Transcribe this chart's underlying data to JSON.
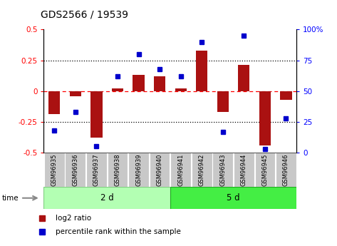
{
  "title": "GDS2566 / 19539",
  "samples": [
    "GSM96935",
    "GSM96936",
    "GSM96937",
    "GSM96938",
    "GSM96939",
    "GSM96940",
    "GSM96941",
    "GSM96942",
    "GSM96943",
    "GSM96944",
    "GSM96945",
    "GSM96946"
  ],
  "log2_ratio": [
    -0.19,
    -0.04,
    -0.38,
    0.02,
    0.13,
    0.12,
    0.02,
    0.33,
    -0.17,
    0.21,
    -0.44,
    -0.07
  ],
  "percentile_rank": [
    18,
    33,
    5,
    62,
    80,
    68,
    62,
    90,
    17,
    95,
    3,
    28
  ],
  "group1_label": "2 d",
  "group2_label": "5 d",
  "group1_color": "#b3ffb3",
  "group2_color": "#44ee44",
  "bar_color": "#aa1111",
  "dot_color": "#0000cc",
  "ylim_left": [
    -0.5,
    0.5
  ],
  "ylim_right": [
    0,
    100
  ],
  "yticks_left": [
    -0.5,
    -0.25,
    0.0,
    0.25,
    0.5
  ],
  "yticks_right": [
    0,
    25,
    50,
    75,
    100
  ],
  "ytick_labels_left": [
    "-0.5",
    "-0.25",
    "0",
    "0.25",
    "0.5"
  ],
  "ytick_labels_right": [
    "0",
    "25",
    "50",
    "75",
    "100%"
  ],
  "legend_bar_label": "log2 ratio",
  "legend_dot_label": "percentile rank within the sample",
  "time_label": "time",
  "sample_bg": "#c8c8c8",
  "background_color": "#ffffff"
}
